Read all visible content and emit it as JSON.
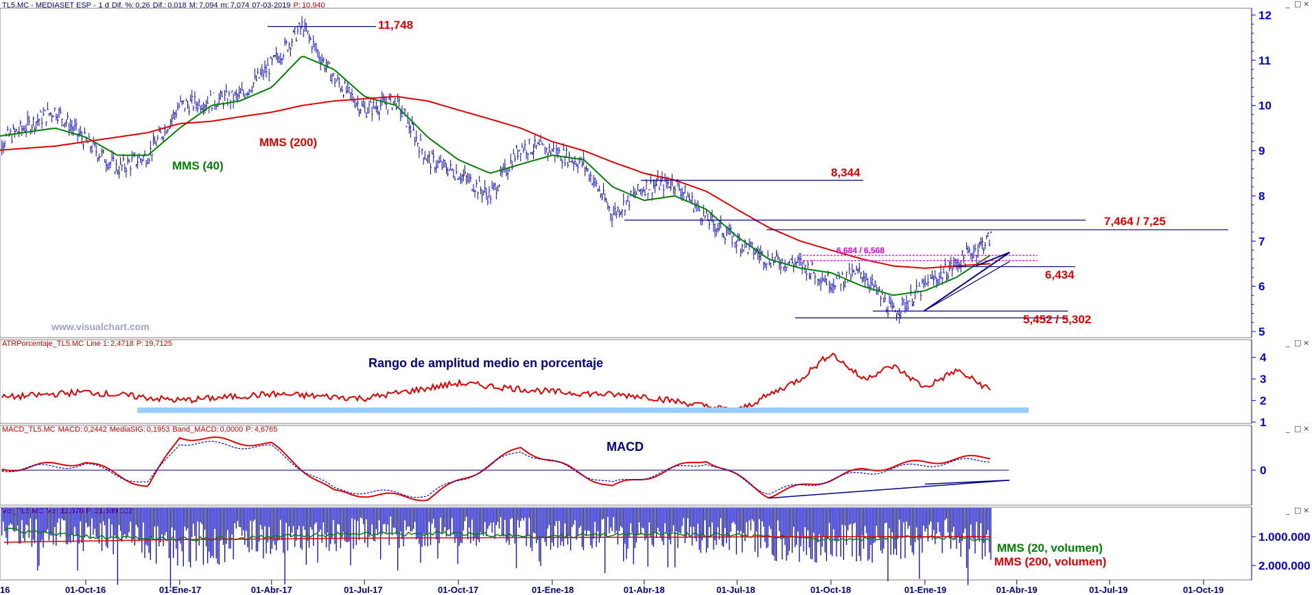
{
  "header": {
    "price": {
      "symbol": "TL5.MC - MEDIASET ESP -",
      "interval": "1 d",
      "dif_pct_label": "Dif. %:",
      "dif_pct": "0,26",
      "dif_label": "Dif.:",
      "dif": "0,018",
      "max_label": "M:",
      "max": "7,094",
      "min_label": "m:",
      "min": "7,074",
      "date": "07-03-2019",
      "p_label": "P:",
      "p": "10,940"
    },
    "atr": {
      "name": "ATRPorcentaje_TL5.MC",
      "line_label": "Line 1:",
      "line": "2,4718",
      "p_label": "P:",
      "p": "19,7125"
    },
    "macd": {
      "name": "MACD_TL5.MC",
      "macd_label": "MACD:",
      "macd": "0,2442",
      "sig_label": "MediaSIG:",
      "sig": "0,1953",
      "band_label": "Band_MACD:",
      "band": "0,0000",
      "p_label": "P:",
      "p": "4,6765"
    },
    "vol": {
      "name": "Vol_TL5.MC",
      "vol_label": "Vol:",
      "vol": "12.578",
      "p_label": "P:",
      "p": "21.589.002"
    }
  },
  "annotations": {
    "high": "11,748",
    "r1": "8,344",
    "r2": "7,464 / 7,25",
    "band": "6,684 / 6,568",
    "s1": "6,434",
    "low": "5,452 / 5,302",
    "mms200": "MMS (200)",
    "mms40": "MMS (40)",
    "watermark": "www.visualchart.com",
    "atr_title": "Rango de amplitud medio en porcentaje",
    "macd_title": "MACD",
    "vol_mms20": "MMS (20, volumen)",
    "vol_mms200": "MMS (200, volumen)"
  },
  "window_buttons": [
    "_",
    "□",
    "×"
  ],
  "colors": {
    "price": "#0000cc",
    "mms40": "#008000",
    "mms200": "#e00000",
    "atr": "#e00000",
    "macd": "#e00000",
    "signal": "#0000cc",
    "volume": "#0000cc",
    "axis": "#0000cc"
  },
  "chart_data": [
    {
      "type": "line",
      "name": "price",
      "x": [
        "2016-07-01",
        "2016-08-01",
        "2016-09-01",
        "2016-10-01",
        "2016-11-01",
        "2016-12-01",
        "2017-01-01",
        "2017-02-01",
        "2017-03-01",
        "2017-04-01",
        "2017-05-01",
        "2017-06-01",
        "2017-07-01",
        "2017-08-01",
        "2017-09-01",
        "2017-10-01",
        "2017-11-01",
        "2017-12-01",
        "2018-01-01",
        "2018-02-01",
        "2018-03-01",
        "2018-04-01",
        "2018-05-01",
        "2018-06-01",
        "2018-07-01",
        "2018-08-01",
        "2018-09-01",
        "2018-10-01",
        "2018-11-01",
        "2018-12-01",
        "2019-01-01",
        "2019-02-01",
        "2019-03-07"
      ],
      "series": [
        {
          "name": "Price",
          "values": [
            9.1,
            9.5,
            9.9,
            9.2,
            8.6,
            8.9,
            10.0,
            10.1,
            10.2,
            10.9,
            11.75,
            10.6,
            9.9,
            10.1,
            8.8,
            8.5,
            8.0,
            9.1,
            9.0,
            8.7,
            7.6,
            8.2,
            8.3,
            7.5,
            7.0,
            6.6,
            6.5,
            6.1,
            6.3,
            5.4,
            6.0,
            6.5,
            7.08
          ]
        },
        {
          "name": "MMS (40)",
          "values": [
            9.3,
            9.4,
            9.5,
            9.3,
            8.9,
            8.9,
            9.5,
            10.0,
            10.1,
            10.4,
            11.1,
            10.8,
            10.2,
            10.0,
            9.3,
            8.8,
            8.5,
            8.7,
            8.9,
            8.8,
            8.2,
            7.9,
            8.0,
            7.7,
            7.1,
            6.6,
            6.4,
            6.3,
            6.0,
            5.8,
            5.9,
            6.2,
            6.7
          ]
        },
        {
          "name": "MMS (200)",
          "values": [
            9.0,
            9.05,
            9.1,
            9.2,
            9.3,
            9.4,
            9.6,
            9.65,
            9.75,
            9.85,
            10.0,
            10.1,
            10.15,
            10.2,
            10.1,
            9.9,
            9.7,
            9.5,
            9.2,
            9.0,
            8.75,
            8.5,
            8.35,
            8.1,
            7.7,
            7.3,
            7.0,
            6.8,
            6.6,
            6.45,
            6.4,
            6.45,
            6.5
          ]
        }
      ],
      "levels": [
        11.748,
        8.344,
        7.464,
        7.25,
        6.684,
        6.568,
        6.434,
        5.452,
        5.302
      ],
      "ylim": [
        5,
        12
      ],
      "yticks": [
        5,
        6,
        7,
        8,
        9,
        10,
        11,
        12
      ],
      "xticks": [
        "16",
        "01-Oct-16",
        "01-Ene-17",
        "01-Abr-17",
        "01-Jul-17",
        "01-Oct-17",
        "01-Ene-18",
        "01-Abr-18",
        "01-Jul-18",
        "01-Oct-18",
        "01-Ene-19",
        "01-Abr-19",
        "01-Jul-19",
        "01-Oct-19"
      ],
      "grid": false
    },
    {
      "type": "line",
      "name": "atr",
      "x": [
        "2016-07-01",
        "2016-10-01",
        "2017-01-01",
        "2017-04-01",
        "2017-07-01",
        "2017-10-01",
        "2018-01-01",
        "2018-04-01",
        "2018-07-01",
        "2018-09-01",
        "2018-10-01",
        "2018-11-01",
        "2018-12-01",
        "2019-01-01",
        "2019-02-01",
        "2019-03-07"
      ],
      "series": [
        {
          "name": "Line 1",
          "values": [
            2.1,
            2.4,
            2.0,
            2.3,
            2.1,
            2.8,
            2.4,
            2.2,
            1.5,
            3.0,
            4.2,
            3.0,
            3.6,
            2.6,
            3.4,
            2.47
          ]
        }
      ],
      "ylim": [
        1,
        4.5
      ],
      "yticks": [
        1,
        2,
        3,
        4
      ],
      "grid": false
    },
    {
      "type": "line",
      "name": "macd",
      "x": [
        "2016-07-01",
        "2016-10-01",
        "2016-12-01",
        "2017-01-01",
        "2017-04-01",
        "2017-06-01",
        "2017-09-01",
        "2017-12-01",
        "2018-03-01",
        "2018-06-01",
        "2018-08-01",
        "2018-11-01",
        "2019-01-01",
        "2019-03-07"
      ],
      "series": [
        {
          "name": "MACD",
          "values": [
            0.0,
            0.15,
            -0.3,
            0.6,
            0.45,
            -0.4,
            -0.5,
            0.4,
            -0.3,
            0.2,
            -0.45,
            0.0,
            0.15,
            0.24
          ]
        },
        {
          "name": "MediaSIG",
          "values": [
            0.0,
            0.1,
            -0.25,
            0.5,
            0.4,
            -0.35,
            -0.45,
            0.35,
            -0.25,
            0.15,
            -0.4,
            -0.05,
            0.1,
            0.195
          ]
        }
      ],
      "ylim": [
        -0.6,
        0.7
      ],
      "yticks": [
        0
      ],
      "grid": false
    },
    {
      "type": "bar",
      "name": "volume",
      "x": [
        "2016-07-01",
        "2016-10-01",
        "2017-01-01",
        "2017-04-01",
        "2017-07-01",
        "2017-10-01",
        "2018-01-01",
        "2018-04-01",
        "2018-07-01",
        "2018-10-01",
        "2019-01-01",
        "2019-03-07"
      ],
      "series": [
        {
          "name": "Volumen",
          "values": [
            900000,
            1100000,
            1500000,
            1300000,
            1000000,
            1000000,
            1100000,
            1000000,
            1200000,
            1500000,
            1200000,
            1300000
          ]
        },
        {
          "name": "MMS (20, volumen)",
          "values": [
            700000,
            1000000,
            1100000,
            1000000,
            900000,
            900000,
            1000000,
            900000,
            950000,
            1100000,
            1000000,
            1100000
          ]
        },
        {
          "name": "MMS (200, volumen)",
          "values": [
            1200000,
            1150000,
            1100000,
            1080000,
            1050000,
            1040000,
            1030000,
            1020000,
            1010000,
            1000000,
            1000000,
            1000000
          ]
        }
      ],
      "ylim": [
        0,
        2500000
      ],
      "yticks": [
        "1.000.000",
        "2.000.000"
      ],
      "grid": false
    }
  ]
}
